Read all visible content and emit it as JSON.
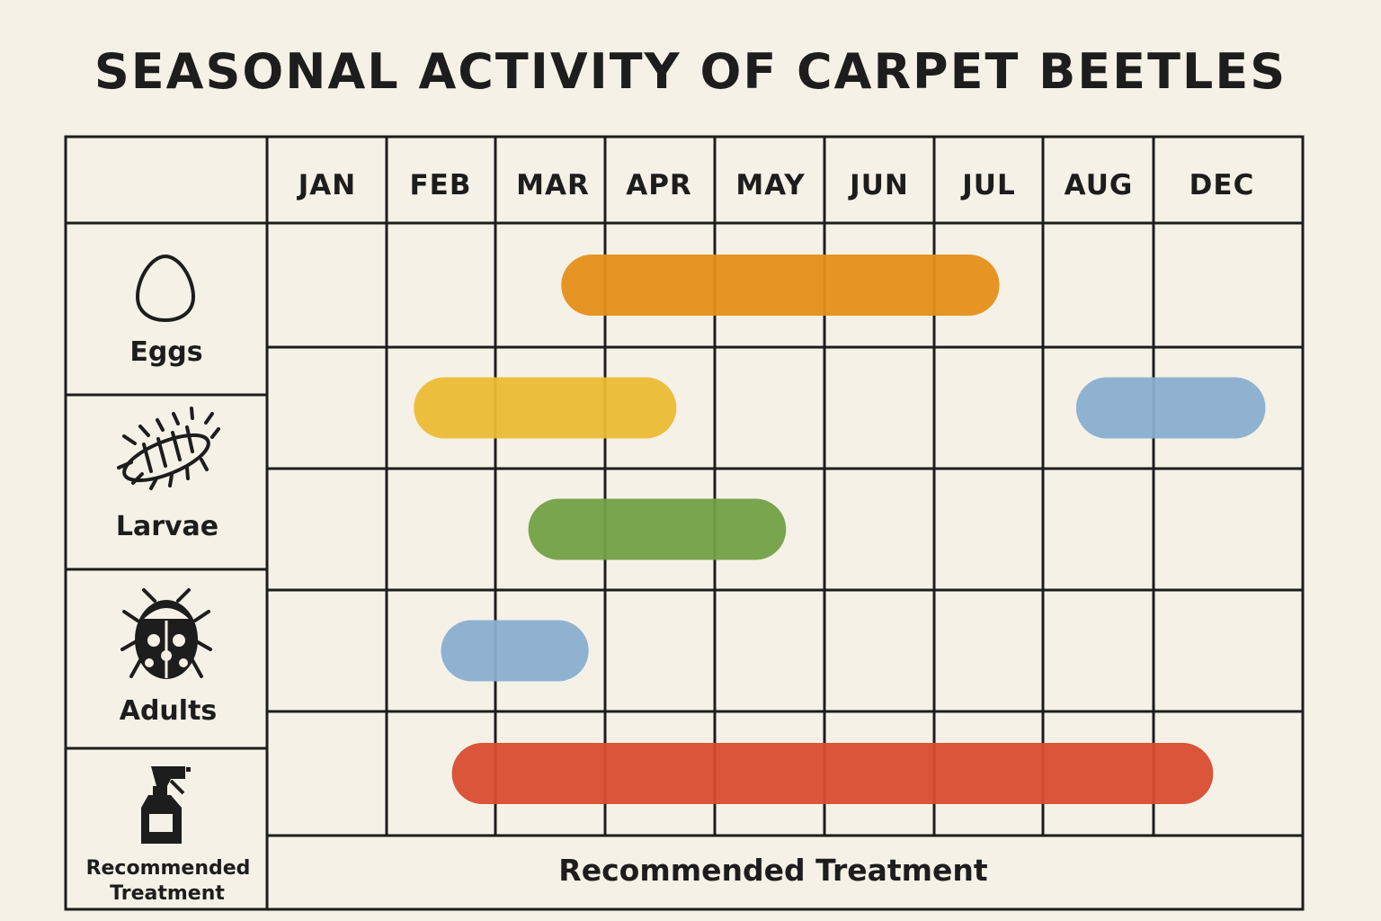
{
  "title": "SEASONAL ACTIVITY OF CARPET BEETLES",
  "chart_data": {
    "type": "gantt",
    "months": [
      "JAN",
      "FEB",
      "MAR",
      "APR",
      "MAY",
      "JUN",
      "JUL",
      "AUG",
      "DEC"
    ],
    "row_labels": {
      "eggs": "Eggs",
      "larvae": "Larvae",
      "adults": "Adults",
      "treatment_line1": "Recommended",
      "treatment_line2": "Treatment"
    },
    "row_icons": [
      "egg-icon",
      "larva-icon",
      "beetle-icon",
      "spray-bottle-icon"
    ],
    "bars": [
      {
        "row": 1,
        "start": 3.6,
        "end": 7.6,
        "color": "#e58f1a"
      },
      {
        "row": 2,
        "start": 2.25,
        "end": 4.65,
        "color": "#ebbb35"
      },
      {
        "row": 2,
        "start": 8.3,
        "end": 9.75,
        "color": "#89aed0"
      },
      {
        "row": 3,
        "start": 3.3,
        "end": 5.65,
        "color": "#73a047"
      },
      {
        "row": 4,
        "start": 2.5,
        "end": 3.85,
        "color": "#89aed0"
      },
      {
        "row": 5,
        "start": 2.6,
        "end": 9.4,
        "color": "#d84c2f"
      }
    ],
    "footer": "Recommended Treatment"
  }
}
